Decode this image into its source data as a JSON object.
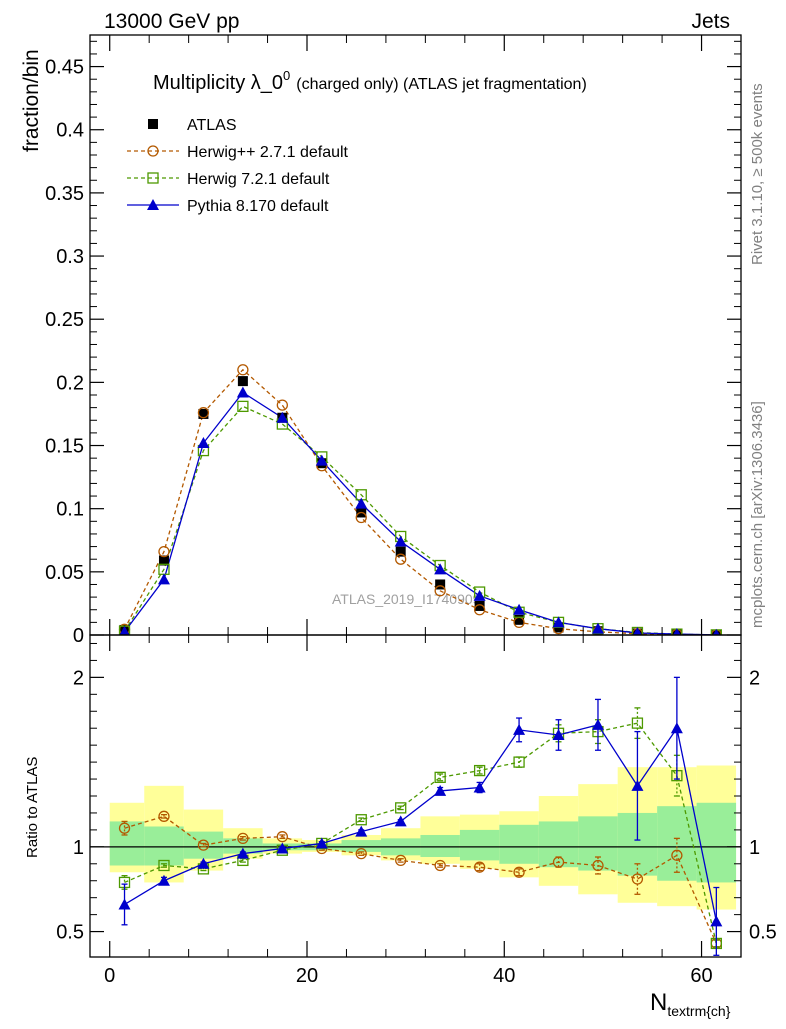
{
  "header": {
    "left": "13000 GeV pp",
    "right": "Jets"
  },
  "side_labels": {
    "rivet": "Rivet 3.1.10, ≥ 500k events",
    "mcplots": "mcplots.cern.ch [arXiv:1306.3436]"
  },
  "chart_data": [
    {
      "type": "scatter",
      "panel": "main",
      "title_main": "Multiplicity λ_0",
      "title_sup": "0",
      "title_paren": "(charged only) (ATLAS jet fragmentation)",
      "ylabel": "fraction/bin",
      "watermark": "ATLAS_2019_I1740909",
      "xlim": [
        -2,
        64
      ],
      "ylim": [
        0,
        0.475
      ],
      "yticks": [
        {
          "v": 0,
          "label": "0"
        },
        {
          "v": 0.05,
          "label": "0.05"
        },
        {
          "v": 0.1,
          "label": "0.1"
        },
        {
          "v": 0.15,
          "label": "0.15"
        },
        {
          "v": 0.2,
          "label": "0.2"
        },
        {
          "v": 0.25,
          "label": "0.25"
        },
        {
          "v": 0.3,
          "label": "0.3"
        },
        {
          "v": 0.35,
          "label": "0.35"
        },
        {
          "v": 0.4,
          "label": "0.4"
        },
        {
          "v": 0.45,
          "label": "0.45"
        }
      ],
      "x": [
        1.5,
        5.5,
        9.5,
        13.5,
        17.5,
        21.5,
        25.5,
        29.5,
        33.5,
        37.5,
        41.5,
        45.5,
        49.5,
        53.5,
        57.5,
        61.5
      ],
      "series": [
        {
          "name": "ATLAS",
          "style": "data",
          "color": "#000000",
          "values": [
            0.004,
            0.059,
            0.175,
            0.201,
            0.172,
            0.136,
            0.097,
            0.066,
            0.04,
            0.023,
            0.012,
            0.006,
            0.003,
            0.0012,
            0.0005,
            0.0002
          ]
        },
        {
          "name": "Herwig++ 2.7.1 default",
          "style": "circle",
          "color": "#b35900",
          "values": [
            0.0045,
            0.066,
            0.176,
            0.21,
            0.182,
            0.134,
            0.093,
            0.06,
            0.035,
            0.02,
            0.01,
            0.005,
            0.0025,
            0.001,
            0.0005,
            0.0001
          ]
        },
        {
          "name": "Herwig 7.2.1 default",
          "style": "square",
          "color": "#4d9900",
          "values": [
            0.003,
            0.052,
            0.146,
            0.181,
            0.167,
            0.141,
            0.111,
            0.078,
            0.055,
            0.034,
            0.018,
            0.01,
            0.005,
            0.002,
            0.0007,
            0.0001
          ]
        },
        {
          "name": "Pythia 8.170 default",
          "style": "triangle",
          "color": "#0000cc",
          "values": [
            0.0025,
            0.044,
            0.152,
            0.192,
            0.172,
            0.138,
            0.104,
            0.074,
            0.052,
            0.031,
            0.02,
            0.01,
            0.005,
            0.0016,
            0.0008,
            0.0001
          ]
        }
      ]
    },
    {
      "type": "scatter",
      "panel": "ratio",
      "ylabel": "Ratio to ATLAS",
      "xlabel": "N",
      "xlabel_sub": "textrm{ch}",
      "xlim": [
        -2,
        64
      ],
      "ylim": [
        0.35,
        2.25
      ],
      "yticks": [
        {
          "v": 0.5,
          "label": "0.5"
        },
        {
          "v": 1,
          "label": "1"
        },
        {
          "v": 2,
          "label": "2"
        }
      ],
      "xticks": [
        {
          "v": 0,
          "label": "0"
        },
        {
          "v": 20,
          "label": "20"
        },
        {
          "v": 40,
          "label": "40"
        },
        {
          "v": 60,
          "label": "60"
        }
      ],
      "band_edges": [
        0,
        3.5,
        7.5,
        11.5,
        15.5,
        19.5,
        23.5,
        27.5,
        31.5,
        35.5,
        39.5,
        43.5,
        47.5,
        51.5,
        55.5,
        59.5,
        63.5
      ],
      "band_yellow_low": [
        0.85,
        0.79,
        0.86,
        0.93,
        0.96,
        0.97,
        0.95,
        0.92,
        0.9,
        0.87,
        0.82,
        0.77,
        0.72,
        0.67,
        0.65,
        0.63
      ],
      "band_yellow_high": [
        1.26,
        1.36,
        1.22,
        1.11,
        1.05,
        1.04,
        1.07,
        1.11,
        1.18,
        1.19,
        1.21,
        1.3,
        1.37,
        1.47,
        1.47,
        1.48
      ],
      "band_green_low": [
        0.89,
        0.89,
        0.93,
        0.96,
        0.98,
        0.98,
        0.97,
        0.95,
        0.94,
        0.92,
        0.9,
        0.88,
        0.86,
        0.83,
        0.8,
        0.79
      ],
      "band_green_high": [
        1.15,
        1.12,
        1.09,
        1.05,
        1.02,
        1.02,
        1.04,
        1.05,
        1.07,
        1.1,
        1.13,
        1.15,
        1.18,
        1.2,
        1.24,
        1.26
      ],
      "x": [
        1.5,
        5.5,
        9.5,
        13.5,
        17.5,
        21.5,
        25.5,
        29.5,
        33.5,
        37.5,
        41.5,
        45.5,
        49.5,
        53.5,
        57.5,
        61.5
      ],
      "series": [
        {
          "name": "Herwig++ 2.7.1 default",
          "style": "circle",
          "color": "#b35900",
          "values": [
            1.11,
            1.18,
            1.01,
            1.05,
            1.06,
            0.99,
            0.96,
            0.92,
            0.89,
            0.88,
            0.85,
            0.91,
            0.89,
            0.81,
            0.95,
            0.43
          ],
          "errors": [
            0.04,
            0.01,
            0.01,
            0.01,
            0.01,
            0.01,
            0.01,
            0.01,
            0.01,
            0.02,
            0.02,
            0.03,
            0.05,
            0.09,
            0.1,
            0.02
          ]
        },
        {
          "name": "Herwig 7.2.1 default",
          "style": "square",
          "color": "#4d9900",
          "values": [
            0.79,
            0.89,
            0.87,
            0.92,
            0.98,
            1.02,
            1.16,
            1.23,
            1.41,
            1.45,
            1.5,
            1.67,
            1.68,
            1.73,
            1.42,
            0.43
          ],
          "errors": [
            0.04,
            0.01,
            0.01,
            0.01,
            0.01,
            0.01,
            0.01,
            0.01,
            0.02,
            0.02,
            0.03,
            0.05,
            0.07,
            0.09,
            0.12,
            0.02
          ]
        },
        {
          "name": "Pythia 8.170 default",
          "style": "triangle",
          "color": "#0000cc",
          "values": [
            0.66,
            0.8,
            0.9,
            0.96,
            0.99,
            1.02,
            1.09,
            1.15,
            1.33,
            1.35,
            1.69,
            1.66,
            1.72,
            1.36,
            1.7,
            0.56
          ],
          "errors": [
            0.12,
            0.02,
            0.01,
            0.01,
            0.01,
            0.01,
            0.01,
            0.01,
            0.02,
            0.03,
            0.07,
            0.09,
            0.15,
            0.32,
            0.3,
            0.2
          ]
        }
      ]
    }
  ]
}
